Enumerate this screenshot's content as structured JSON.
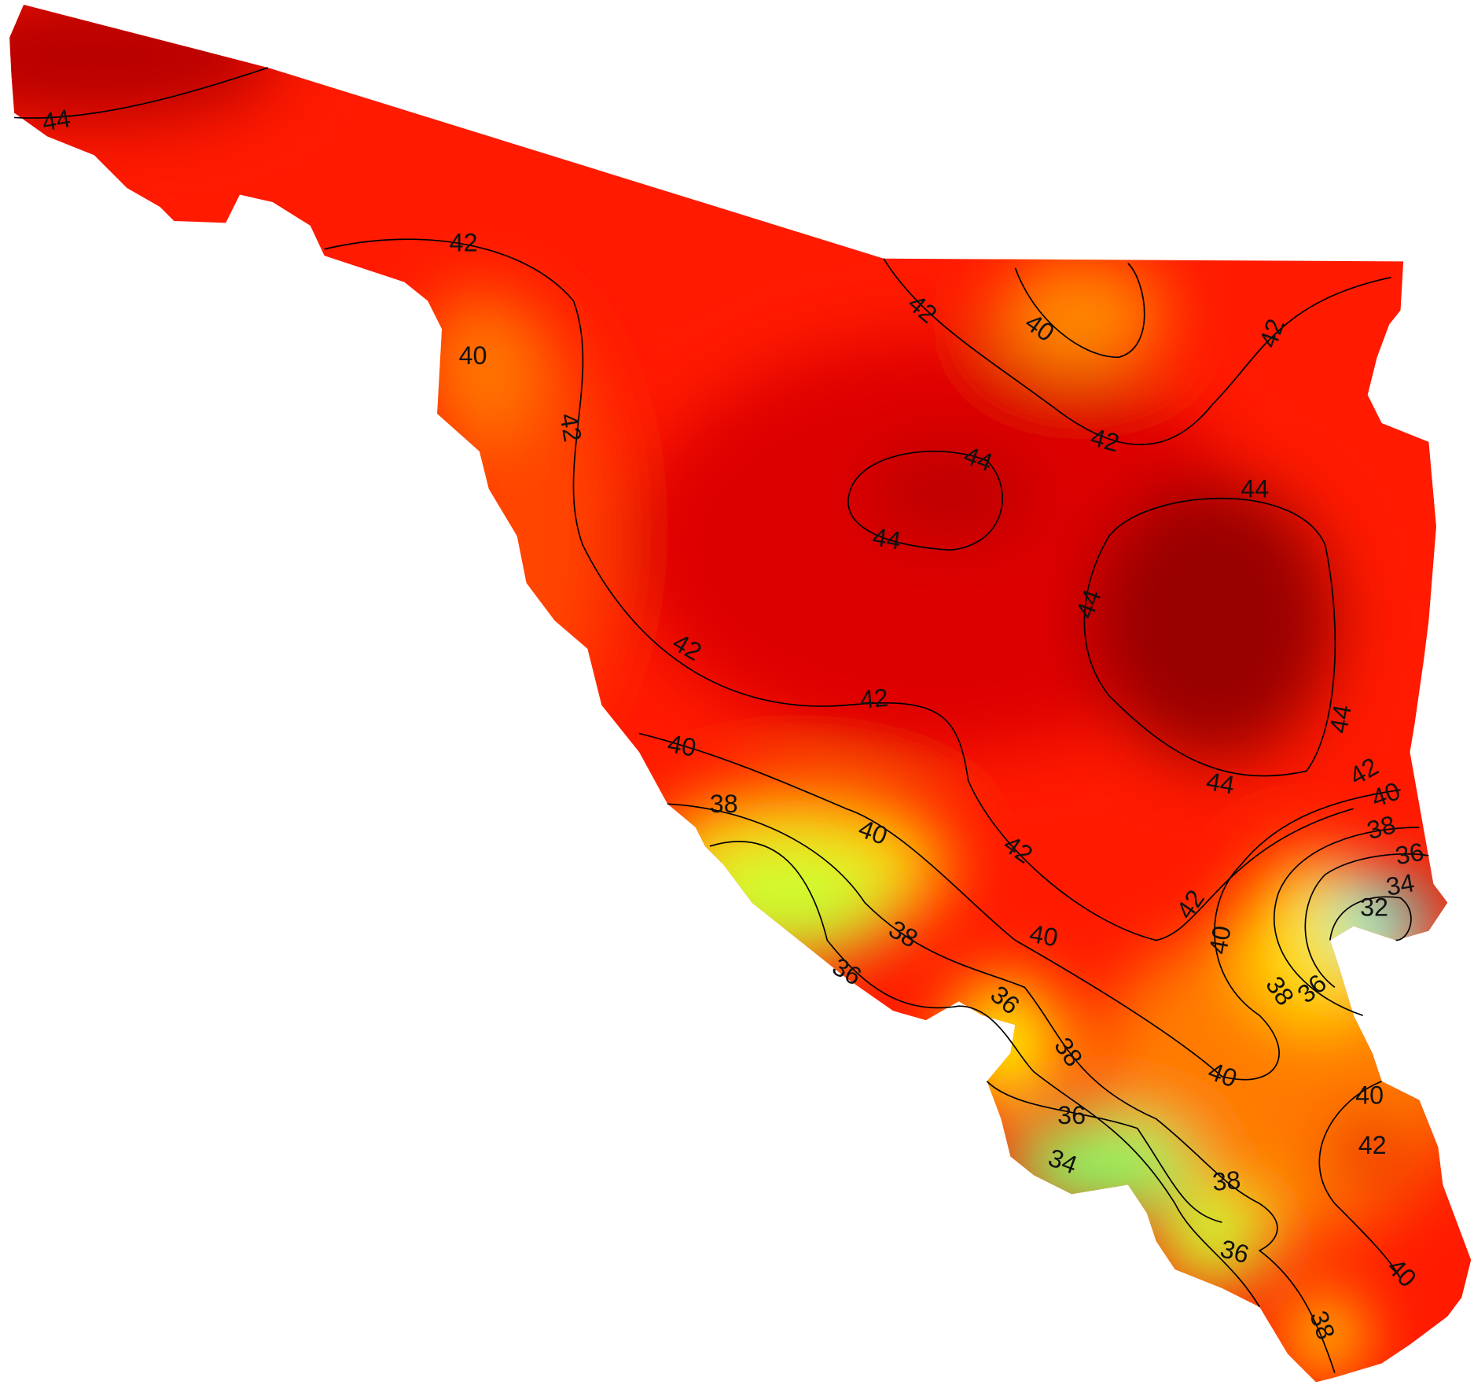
{
  "contour_labels": [
    44,
    42,
    40,
    42,
    42,
    40,
    42,
    42,
    44,
    44,
    44,
    44,
    42,
    42,
    44,
    44,
    42,
    40,
    40,
    38,
    38,
    36,
    40,
    42,
    34,
    32,
    42,
    38,
    40,
    40,
    36,
    38,
    36,
    36,
    38,
    40,
    40,
    36,
    42,
    34,
    38,
    36,
    40,
    38
  ]
}
